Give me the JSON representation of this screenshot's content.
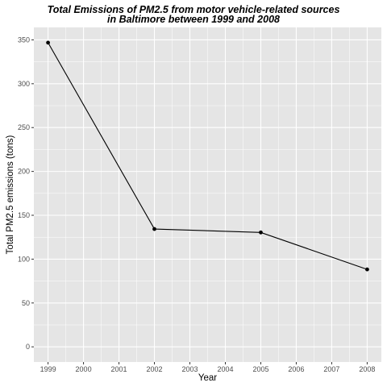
{
  "chart_data": {
    "type": "line",
    "title_line1": "Total Emissions of PM2.5 from motor vehicle-related sources",
    "title_line2": "in Baltimore between 1999 and 2008",
    "xlabel": "Year",
    "ylabel": "Total PM2.5 emissions (tons)",
    "x": [
      1999,
      2002,
      2005,
      2008
    ],
    "y": [
      346.82,
      134.31,
      130.43,
      88.28
    ],
    "xticks": [
      1999,
      2000,
      2001,
      2002,
      2003,
      2004,
      2005,
      2006,
      2007,
      2008
    ],
    "yticks": [
      0,
      50,
      100,
      150,
      200,
      250,
      300,
      350
    ],
    "xlim": [
      1998.6,
      2008.4
    ],
    "ylim": [
      -17.3,
      364.2
    ],
    "grid": true,
    "colors": {
      "panel": "#e5e5e5",
      "grid": "#ffffff",
      "line": "#000000"
    }
  }
}
